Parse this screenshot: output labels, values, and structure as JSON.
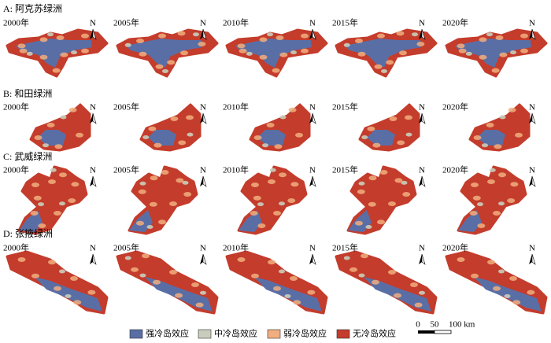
{
  "rows": [
    {
      "title": "A: 阿克苏绿洲",
      "years": [
        "2000年",
        "2005年",
        "2010年",
        "2015年",
        "2020年"
      ]
    },
    {
      "title": "B: 和田绿洲",
      "years": [
        "2000年",
        "2005年",
        "2010年",
        "2015年",
        "2020年"
      ]
    },
    {
      "title": "C: 武威绿洲",
      "years": [
        "2000年",
        "2005年",
        "2010年",
        "2015年",
        "2020年"
      ]
    },
    {
      "title": "D: 张掖绿洲",
      "years": [
        "2000年",
        "2005年",
        "2010年",
        "2015年",
        "2020年"
      ]
    }
  ],
  "north_label": "N",
  "legend": [
    {
      "name": "强冷岛效应",
      "color": "#5a6ea6"
    },
    {
      "name": "中冷岛效应",
      "color": "#c9cdbb"
    },
    {
      "name": "弱冷岛效应",
      "color": "#f1ae7e"
    },
    {
      "name": "无冷岛效应",
      "color": "#c43c2c"
    }
  ],
  "scale_bar": {
    "labels": [
      "0",
      "50",
      "100 km"
    ]
  }
}
